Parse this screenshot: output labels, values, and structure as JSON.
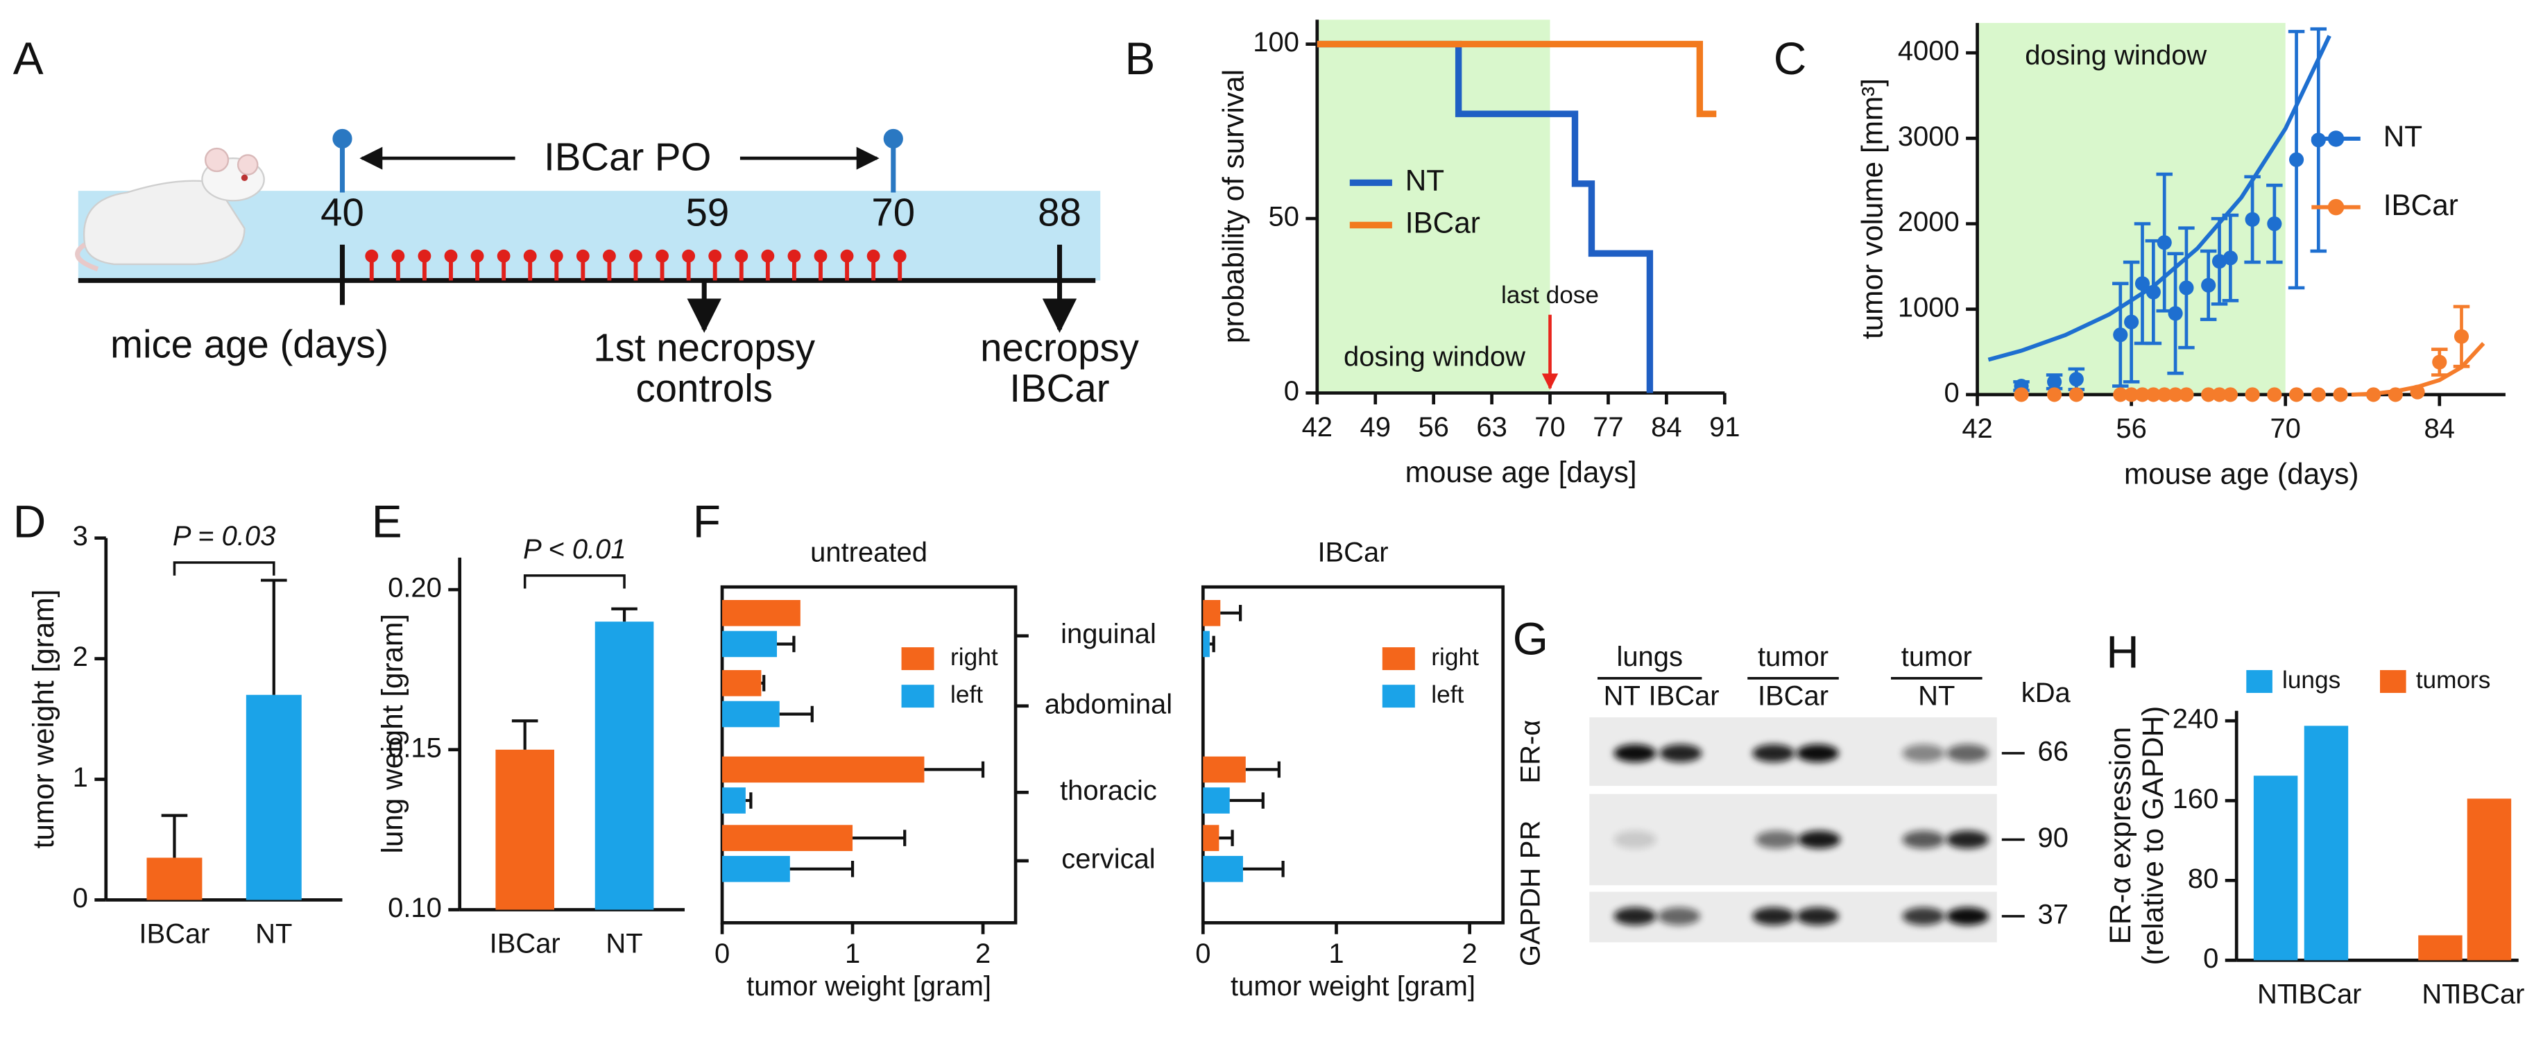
{
  "panel_a": {
    "letter": "A",
    "dosing_label": "IBCar PO",
    "ages": [
      40,
      59,
      70,
      88
    ],
    "xlabel": "mice age (days)",
    "events": [
      [
        "1st necropsy",
        "controls"
      ],
      [
        "necropsy",
        "IBCar"
      ]
    ]
  },
  "chart_data": [
    {
      "panel": "B",
      "type": "line",
      "step": true,
      "xlabel": "mouse age [days]",
      "ylabel": "probability of survival",
      "xlim": [
        42,
        91
      ],
      "xticks": [
        42,
        49,
        56,
        63,
        70,
        77,
        84,
        91
      ],
      "ylim": [
        0,
        107
      ],
      "yticks": [
        0,
        50,
        100
      ],
      "shade": {
        "xlim": [
          42,
          70
        ],
        "color": "#d9f7cc",
        "label": "dosing window"
      },
      "annotation": {
        "text": "last dose",
        "x": 70,
        "color": "#e8241c"
      },
      "legend": "center-left",
      "series": [
        {
          "name": "NT",
          "color": "#1f5fc4",
          "x": [
            42,
            59,
            73,
            75,
            82
          ],
          "values": [
            100,
            80,
            60,
            40,
            0
          ]
        },
        {
          "name": "IBCar",
          "color": "#f27a1e",
          "x": [
            42,
            88,
            90
          ],
          "values": [
            100,
            80,
            80
          ]
        }
      ]
    },
    {
      "panel": "C",
      "type": "scatter",
      "xlabel": "mouse age (days)",
      "ylabel": "tumor volume [mm³]",
      "xlim": [
        42,
        90
      ],
      "xticks": [
        42,
        56,
        70,
        84
      ],
      "ylim": [
        0,
        4350
      ],
      "yticks": [
        0,
        1000,
        2000,
        3000,
        4000
      ],
      "shade": {
        "xlim": [
          42,
          70
        ],
        "color": "#d9f7cc",
        "label": "dosing window"
      },
      "legend": "right",
      "series": [
        {
          "name": "NT",
          "color": "#1e6fd0",
          "x": [
            46,
            49,
            51,
            55,
            56,
            57,
            58,
            59,
            60,
            61,
            63,
            64,
            65,
            67,
            69,
            71,
            73
          ],
          "values": [
            100,
            150,
            180,
            700,
            850,
            1300,
            1200,
            1780,
            950,
            1250,
            1280,
            1560,
            1600,
            2050,
            2000,
            2750,
            2980
          ],
          "errors": [
            50,
            80,
            120,
            600,
            700,
            700,
            600,
            800,
            700,
            700,
            400,
            500,
            500,
            500,
            450,
            1500,
            1300
          ]
        },
        {
          "name": "IBCar",
          "color": "#f57c2b",
          "x": [
            46,
            49,
            51,
            55,
            56,
            57,
            58,
            59,
            60,
            61,
            63,
            64,
            65,
            67,
            69,
            71,
            73,
            75,
            78,
            80,
            82,
            84,
            86
          ],
          "values": [
            0,
            0,
            0,
            0,
            0,
            0,
            0,
            0,
            0,
            0,
            0,
            0,
            0,
            0,
            0,
            0,
            0,
            0,
            0,
            0,
            30,
            380,
            680
          ],
          "errors": [
            null,
            null,
            null,
            null,
            null,
            null,
            null,
            null,
            null,
            null,
            null,
            null,
            null,
            null,
            null,
            null,
            null,
            null,
            null,
            null,
            null,
            150,
            350
          ]
        }
      ],
      "fits": [
        {
          "color": "#1e6fd0",
          "x": [
            43,
            46,
            50,
            54,
            58,
            62,
            66,
            70,
            74
          ],
          "values": [
            409,
            514,
            697,
            940,
            1268,
            1711,
            2308,
            3113,
            4200
          ]
        },
        {
          "color": "#f57c2b",
          "x": [
            76,
            78,
            80,
            82,
            84,
            86,
            88
          ],
          "values": [
            0,
            10,
            40,
            90,
            170,
            320,
            600
          ]
        }
      ]
    },
    {
      "panel": "D",
      "type": "bar",
      "ylabel": "tumor weight [gram]",
      "categories": [
        "IBCar",
        "NT"
      ],
      "values": [
        0.35,
        1.7
      ],
      "errors": [
        0.35,
        0.95
      ],
      "colors": [
        "#f4661b",
        "#1ba3e8"
      ],
      "ylim": [
        0,
        3
      ],
      "yticks": [
        0,
        1,
        2,
        3
      ],
      "annotation": {
        "text": "P = 0.03"
      }
    },
    {
      "panel": "E",
      "type": "bar",
      "ylabel": "lung weight [gram]",
      "categories": [
        "IBCar",
        "NT"
      ],
      "values": [
        0.15,
        0.19
      ],
      "errors": [
        0.009,
        0.004
      ],
      "colors": [
        "#f4661b",
        "#1ba3e8"
      ],
      "ylim": [
        0.1,
        0.21
      ],
      "yticks": [
        {
          "value": 0.1,
          "label": "0.10"
        },
        0.15,
        {
          "value": 0.2,
          "label": "0.20"
        }
      ],
      "annotation": {
        "text": "P < 0.01"
      }
    },
    {
      "panel": "F",
      "type": "hbar",
      "title": "untreated",
      "xlabel": "tumor weight [gram]",
      "categories": [
        "inguinal",
        "abdominal",
        "thoracic",
        "cervical"
      ],
      "xlim": [
        0,
        2.25
      ],
      "xticks": [
        0,
        1,
        2
      ],
      "legend": "right",
      "series": [
        {
          "name": "left",
          "color": "#1ba3e8",
          "values": [
            0.42,
            0.44,
            0.18,
            0.52
          ],
          "errors": [
            0.13,
            0.25,
            0.04,
            0.48
          ]
        },
        {
          "name": "right",
          "color": "#f4661b",
          "values": [
            0.6,
            0.3,
            1.55,
            1.0
          ],
          "errors": [
            null,
            0.02,
            0.45,
            0.4
          ]
        }
      ]
    },
    {
      "type": "hbar",
      "title": "IBCar",
      "xlabel": "tumor weight [gram]",
      "xlim": [
        0,
        2.25
      ],
      "xticks": [
        0,
        1,
        2
      ],
      "legend": "right",
      "series": [
        {
          "name": "left",
          "color": "#1ba3e8",
          "values": [
            0.05,
            0,
            0.2,
            0.3
          ],
          "errors": [
            0.03,
            null,
            0.25,
            0.3
          ]
        },
        {
          "name": "right",
          "color": "#f4661b",
          "values": [
            0.13,
            0,
            0.32,
            0.12
          ],
          "errors": [
            0.15,
            null,
            0.25,
            0.1
          ]
        }
      ]
    },
    {
      "panel": "H",
      "type": "bar",
      "ylabel": [
        "ER-α expression",
        "(relative to GAPDH)"
      ],
      "categories": [
        "NT",
        "IBCar",
        "NT",
        "IBCar"
      ],
      "ylim": [
        0,
        250
      ],
      "yticks": [
        0,
        80,
        160,
        240
      ],
      "legend": "top",
      "series": [
        {
          "name": "lungs",
          "color": "#1ba3e8",
          "values": [
            185,
            235,
            null,
            null
          ]
        },
        {
          "name": "tumors",
          "color": "#f4661b",
          "values": [
            null,
            null,
            25,
            162
          ]
        }
      ]
    }
  ],
  "panel_g": {
    "letter": "G",
    "groups": [
      {
        "label": "lungs",
        "lanes": [
          "NT",
          "IBCar"
        ]
      },
      {
        "label": "tumor",
        "lanes": [
          "IBCar"
        ]
      },
      {
        "label": "tumor",
        "lanes": [
          "NT"
        ]
      }
    ],
    "rows": [
      "ER-α",
      "PR",
      "GAPDH"
    ],
    "unit": "kDa",
    "markers": [
      66,
      90,
      37
    ]
  }
}
